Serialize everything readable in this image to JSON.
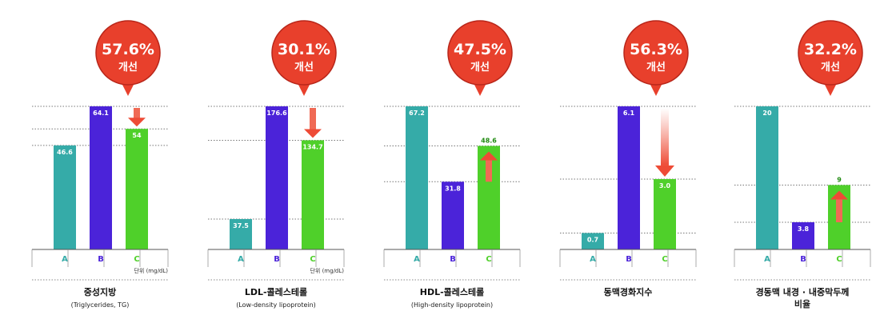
{
  "colors": {
    "A": "#35aba8",
    "B": "#4b23d9",
    "C": "#4fd02a",
    "badge": "#e8402c",
    "badge_dark": "#b8261a",
    "arrow": "#f06a55",
    "grid": "#777777",
    "axis": "#555555"
  },
  "chart_data": [
    {
      "type": "bar",
      "title": "중성지방",
      "subtitle": "(Triglycerides, TG)",
      "categories": [
        "A",
        "B",
        "C"
      ],
      "values": [
        46.6,
        64.1,
        54
      ],
      "value_labels": [
        "46.6",
        "64.1",
        "54"
      ],
      "ylim": [
        0,
        64.1
      ],
      "gridlines": [
        64.1,
        54,
        46.6
      ],
      "unit": "단위 (mg/dL)",
      "badge": {
        "percent": "57.6%",
        "text": "개선"
      },
      "arrow": "down"
    },
    {
      "type": "bar",
      "title": "LDL-콜레스테롤",
      "subtitle": "(Low-density lipoprotein)",
      "categories": [
        "A",
        "B",
        "C"
      ],
      "values": [
        37.5,
        176.6,
        134.7
      ],
      "value_labels": [
        "37.5",
        "176.6",
        "134.7"
      ],
      "ylim": [
        0,
        176.6
      ],
      "gridlines": [
        176.6,
        134.7,
        37.5
      ],
      "unit": "단위 (mg/dL)",
      "badge": {
        "percent": "30.1%",
        "text": "개선"
      },
      "arrow": "down"
    },
    {
      "type": "bar",
      "title": "HDL-콜레스테롤",
      "subtitle": "(High-density lipoprotein)",
      "categories": [
        "A",
        "B",
        "C"
      ],
      "values": [
        67.2,
        31.8,
        48.6
      ],
      "value_labels": [
        "67.2",
        "31.8",
        "48.6"
      ],
      "ylim": [
        0,
        67.2
      ],
      "gridlines": [
        67.2,
        48.6,
        31.8
      ],
      "unit": "",
      "badge": {
        "percent": "47.5%",
        "text": "개선"
      },
      "arrow": "up"
    },
    {
      "type": "bar",
      "title": "동맥경화지수",
      "subtitle": "",
      "categories": [
        "A",
        "B",
        "C"
      ],
      "values": [
        0.7,
        6.1,
        3.0
      ],
      "value_labels": [
        "0.7",
        "6.1",
        "3.0"
      ],
      "ylim": [
        0,
        6.1
      ],
      "gridlines": [
        6.1,
        3.0,
        0.7
      ],
      "unit": "",
      "badge": {
        "percent": "56.3%",
        "text": "개선"
      },
      "arrow": "down-fade"
    },
    {
      "type": "bar",
      "title": "경동맥 내경 · 내중막두께",
      "subtitle": "비율",
      "categories": [
        "A",
        "B",
        "C"
      ],
      "values": [
        20,
        3.8,
        9
      ],
      "value_labels": [
        "20",
        "3.8",
        "9"
      ],
      "ylim": [
        0,
        20
      ],
      "gridlines": [
        20,
        9,
        3.8
      ],
      "unit": "",
      "badge": {
        "percent": "32.2%",
        "text": "개선"
      },
      "arrow": "up"
    }
  ]
}
